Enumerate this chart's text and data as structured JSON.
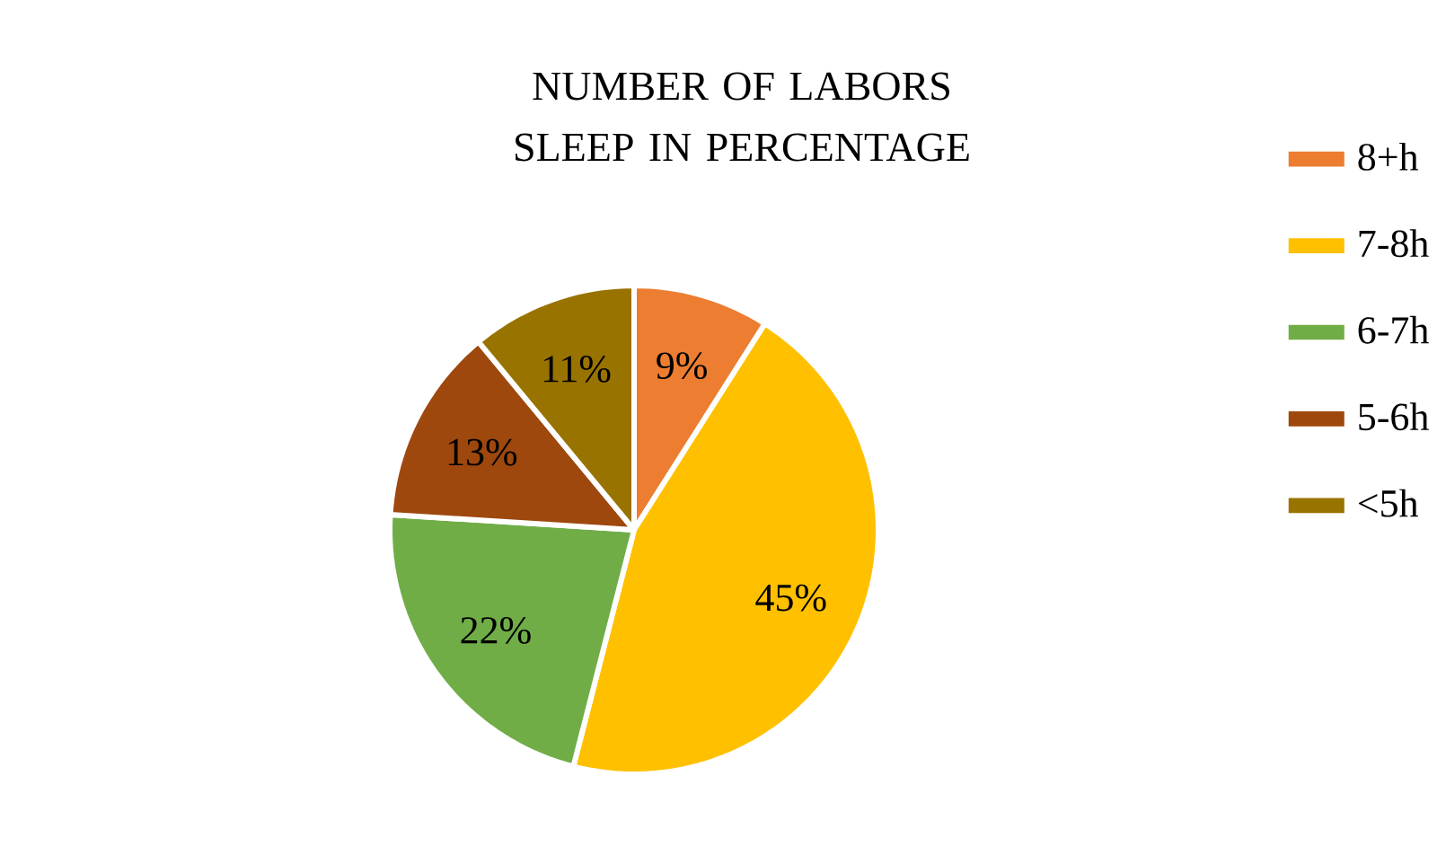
{
  "chart_data": {
    "type": "pie",
    "title": "NUMBER OF LABORS SLEEP IN PERCENTAGE",
    "categories": [
      "8+h",
      "7-8h",
      "6-7h",
      "5-6h",
      "<5h"
    ],
    "values": [
      9,
      45,
      22,
      13,
      11
    ],
    "colors": [
      "#ed7d31",
      "#ffc000",
      "#70ad47",
      "#9e480e",
      "#997300"
    ],
    "value_labels": [
      "9%",
      "45%",
      "22%",
      "13%",
      "11%"
    ],
    "legend": "right"
  }
}
